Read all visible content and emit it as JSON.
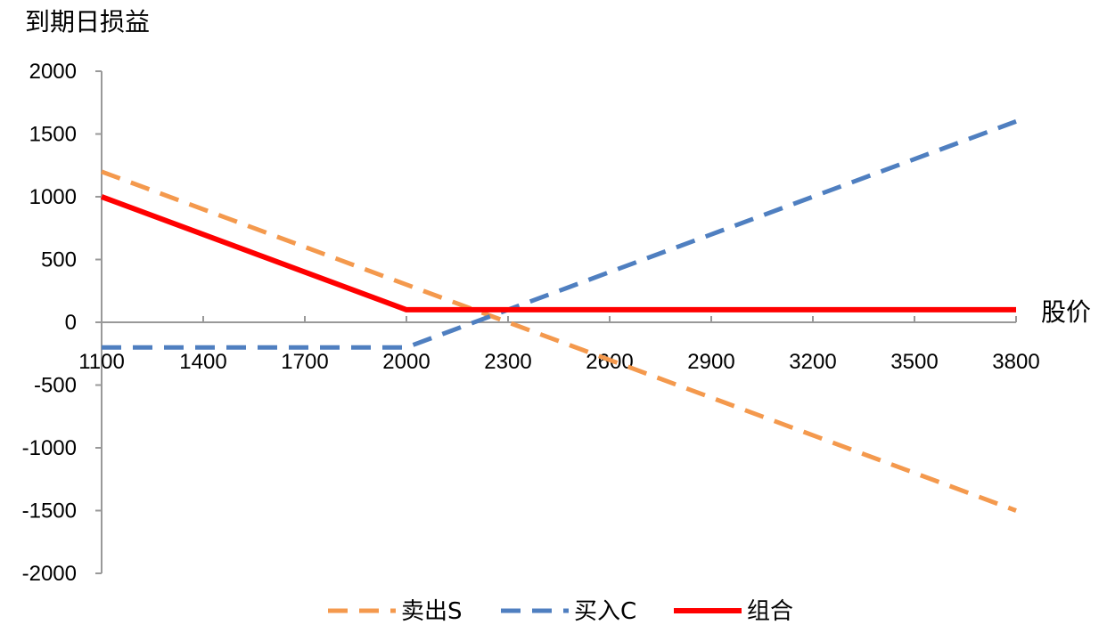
{
  "chart_data": {
    "type": "line",
    "ylabel": "到期日损益",
    "xlabel": "股价",
    "x": [
      1100,
      1400,
      1700,
      2000,
      2300,
      2600,
      2900,
      3200,
      3500,
      3800
    ],
    "x_ticks": [
      "1100",
      "1400",
      "1700",
      "2000",
      "2300",
      "2600",
      "2900",
      "3200",
      "3500",
      "3800"
    ],
    "xlim": [
      1100,
      3800
    ],
    "ylim": [
      -2000,
      2000
    ],
    "y_ticks": [
      "2000",
      "1500",
      "1000",
      "500",
      "0",
      "-500",
      "-1000",
      "-1500",
      "-2000"
    ],
    "y_tick_values": [
      2000,
      1500,
      1000,
      500,
      0,
      -500,
      -1000,
      -1500,
      -2000
    ],
    "grid": false,
    "legend_position": "bottom",
    "series": [
      {
        "name": "卖出S",
        "style": "dashed",
        "color": "#F4994D",
        "x": [
          1100,
          3800
        ],
        "values": [
          1200,
          -1500
        ]
      },
      {
        "name": "买入C",
        "style": "dashed",
        "color": "#4F7FC0",
        "x": [
          1100,
          2000,
          3800
        ],
        "values": [
          -200,
          -200,
          1600
        ]
      },
      {
        "name": "组合",
        "style": "solid",
        "color": "#FF0000",
        "x": [
          1100,
          2000,
          3800
        ],
        "values": [
          1000,
          100,
          100
        ]
      }
    ]
  }
}
